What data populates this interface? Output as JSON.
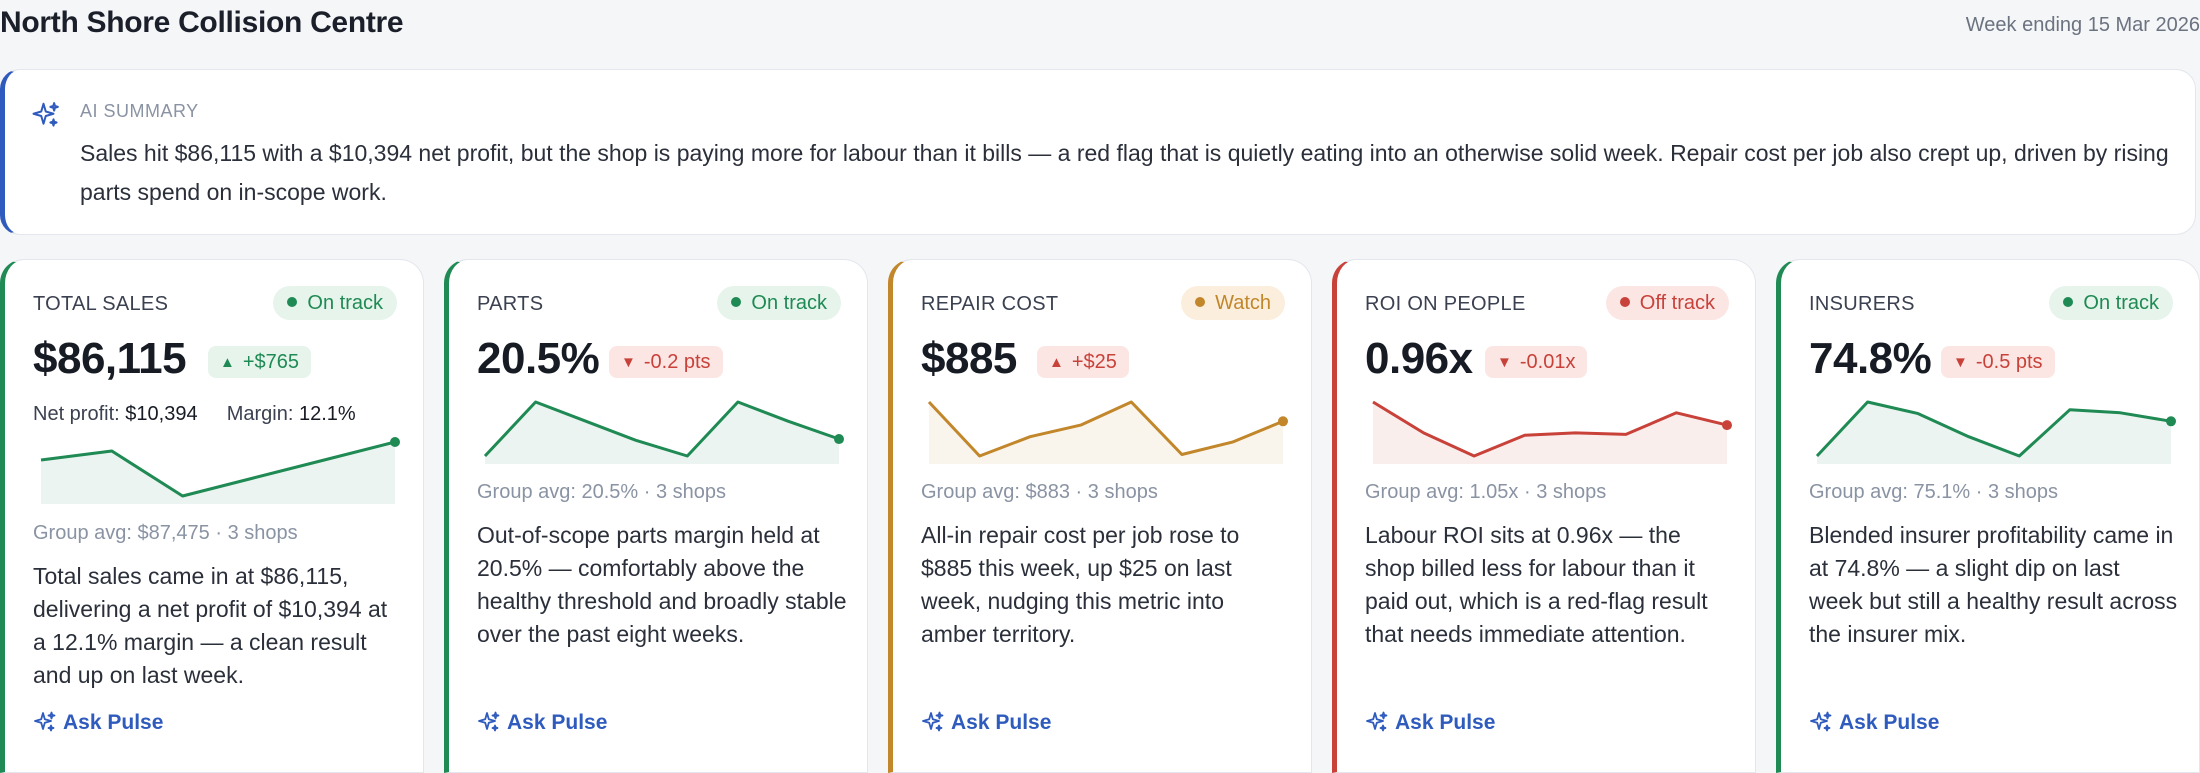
{
  "header": {
    "title": "North Shore Collision Centre",
    "week_label": "Week ending 15 Mar 2026"
  },
  "summary": {
    "icon": "sparkle-icon",
    "label": "AI SUMMARY",
    "text": "Sales hit $86,115 with a $10,394 net profit, but the shop is paying more for labour than it bills — a red flag that is quietly eating into an otherwise solid week. Repair cost per job also crept up, driven by rising parts spend on in-scope work."
  },
  "colors": {
    "green": "#1f8a54",
    "amber": "#c2862b",
    "red": "#c8423a",
    "accent": "#2e5bbd"
  },
  "cards": [
    {
      "title": "TOTAL SALES",
      "status": "On track",
      "tone": "green",
      "value": "$86,115",
      "delta": "+$765",
      "delta_dir": "up",
      "delta_tone": "green",
      "net_profit_label": "Net profit:",
      "net_profit": "$10,394",
      "margin_label": "Margin:",
      "margin": "12.1%",
      "trend": [
        5,
        6,
        1,
        3,
        5,
        7
      ],
      "group_avg": "Group avg: $87,475 · 3 shops",
      "description": "Total sales came in at $86,115, delivering a net profit of $10,394 at a 12.1% margin — a clean result and up on last week.",
      "ask": "Ask Pulse"
    },
    {
      "title": "PARTS",
      "status": "On track",
      "tone": "green",
      "value": "20.5%",
      "delta": "-0.2 pts",
      "delta_dir": "down",
      "delta_tone": "red",
      "trend": [
        1,
        8,
        5.5,
        3,
        1,
        8,
        5.5,
        3.2
      ],
      "group_avg": "Group avg: 20.5% · 3 shops",
      "description": "Out-of-scope parts margin held at 20.5% — comfortably above the healthy threshold and broadly stable over the past eight weeks.",
      "ask": "Ask Pulse"
    },
    {
      "title": "REPAIR COST",
      "status": "Watch",
      "tone": "amber",
      "value": "$885",
      "delta": "+$25",
      "delta_dir": "up",
      "delta_tone": "red",
      "trend": [
        8,
        1,
        3.5,
        5,
        8,
        1.2,
        2.8,
        5.5
      ],
      "group_avg": "Group avg: $883 · 3 shops",
      "description": "All-in repair cost per job rose to $885 this week, up $25 on last week, nudging this metric into amber territory.",
      "ask": "Ask Pulse"
    },
    {
      "title": "ROI ON PEOPLE",
      "status": "Off track",
      "tone": "red",
      "value": "0.96x",
      "delta": "-0.01x",
      "delta_dir": "down",
      "delta_tone": "red",
      "trend": [
        8,
        4,
        1,
        3.7,
        4,
        3.8,
        6.6,
        5
      ],
      "group_avg": "Group avg: 1.05x · 3 shops",
      "description": "Labour ROI sits at 0.96x — the shop billed less for labour than it paid out, which is a red-flag result that needs immediate attention.",
      "ask": "Ask Pulse"
    },
    {
      "title": "INSURERS",
      "status": "On track",
      "tone": "green",
      "value": "74.8%",
      "delta": "-0.5 pts",
      "delta_dir": "down",
      "delta_tone": "red",
      "trend": [
        1,
        8,
        6.5,
        3.5,
        1,
        7,
        6.6,
        5.5
      ],
      "group_avg": "Group avg: 75.1% · 3 shops",
      "description": "Blended insurer profitability came in at 74.8% — a slight dip on last week but still a healthy result across the insurer mix.",
      "ask": "Ask Pulse"
    }
  ]
}
